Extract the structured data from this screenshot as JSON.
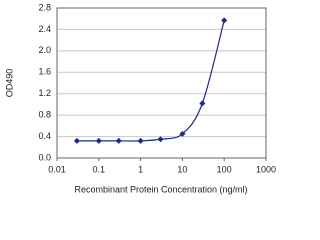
{
  "chart_data": {
    "type": "scatter",
    "x_label": "Recombinant Protein Concentration (ng/ml)",
    "y_label": "OD490",
    "x": [
      0.03,
      0.1,
      0.3,
      1,
      3,
      10,
      30,
      100
    ],
    "values": [
      0.32,
      0.32,
      0.32,
      0.32,
      0.35,
      0.45,
      1.02,
      2.57
    ],
    "color": "#1a2a8c",
    "x_scale": "log",
    "xlim": [
      0.01,
      1000
    ],
    "xticks": [
      0.01,
      0.1,
      1,
      10,
      100,
      1000
    ],
    "ylim": [
      0,
      2.8
    ],
    "yticks": [
      {
        "value": 0,
        "label": "0.0"
      },
      0.4,
      0.8,
      1.2,
      1.6,
      {
        "value": 2,
        "label": "2.0"
      },
      2.4,
      2.8
    ],
    "grid": true
  }
}
